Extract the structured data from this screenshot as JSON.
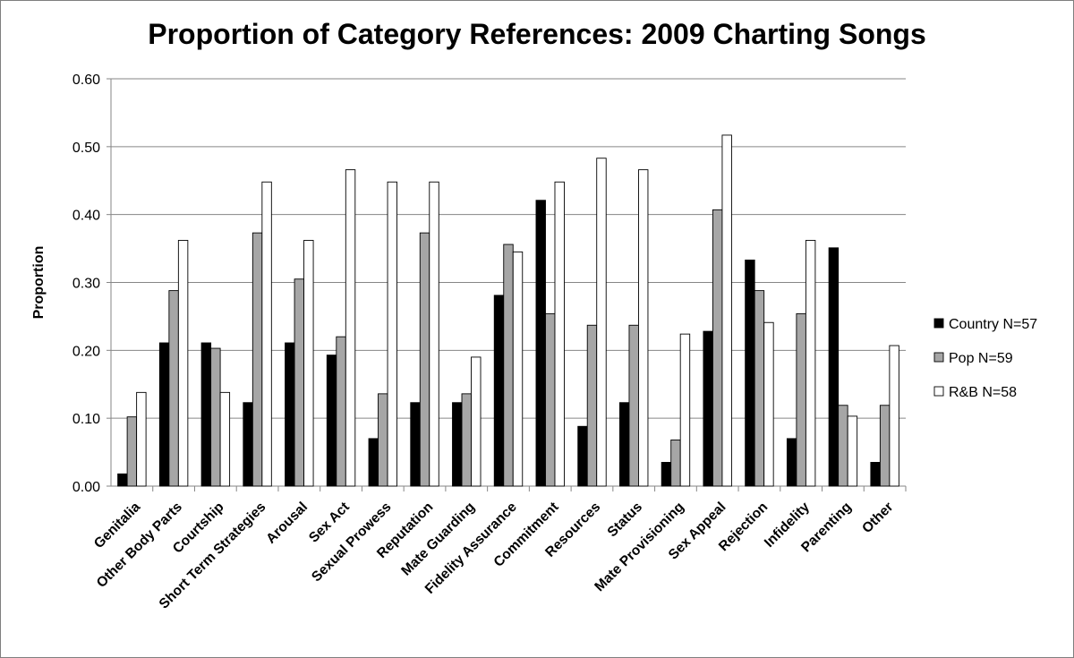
{
  "chart_data": {
    "type": "bar",
    "title": "Proportion of Category References: 2009 Charting Songs",
    "xlabel": "",
    "ylabel": "Proportion",
    "ylim": [
      0,
      0.6
    ],
    "yticks": [
      "0.00",
      "0.10",
      "0.20",
      "0.30",
      "0.40",
      "0.50",
      "0.60"
    ],
    "grid": true,
    "legend_position": "right",
    "categories": [
      "Genitalia",
      "Other Body Parts",
      "Courtship",
      "Short Term Strategies",
      "Arousal",
      "Sex Act",
      "Sexual Prowess",
      "Reputation",
      "Mate Guarding",
      "Fidelity Assurance",
      "Commitment",
      "Resources",
      "Status",
      "Mate Provisioning",
      "Sex Appeal",
      "Rejection",
      "Infidelity",
      "Parenting",
      "Other"
    ],
    "series": [
      {
        "name": "Country N=57",
        "color": "#000000",
        "values": [
          0.018,
          0.211,
          0.211,
          0.123,
          0.211,
          0.193,
          0.07,
          0.123,
          0.123,
          0.281,
          0.421,
          0.088,
          0.123,
          0.035,
          0.228,
          0.333,
          0.07,
          0.351,
          0.035
        ]
      },
      {
        "name": "Pop N=59",
        "color": "#a6a6a6",
        "values": [
          0.102,
          0.288,
          0.203,
          0.373,
          0.305,
          0.22,
          0.136,
          0.373,
          0.136,
          0.356,
          0.254,
          0.237,
          0.237,
          0.068,
          0.407,
          0.288,
          0.254,
          0.119,
          0.119
        ]
      },
      {
        "name": "R&B N=58",
        "color": "#ffffff",
        "values": [
          0.138,
          0.362,
          0.138,
          0.448,
          0.362,
          0.466,
          0.448,
          0.448,
          0.19,
          0.345,
          0.448,
          0.483,
          0.466,
          0.224,
          0.517,
          0.241,
          0.362,
          0.103,
          0.207
        ]
      }
    ]
  }
}
